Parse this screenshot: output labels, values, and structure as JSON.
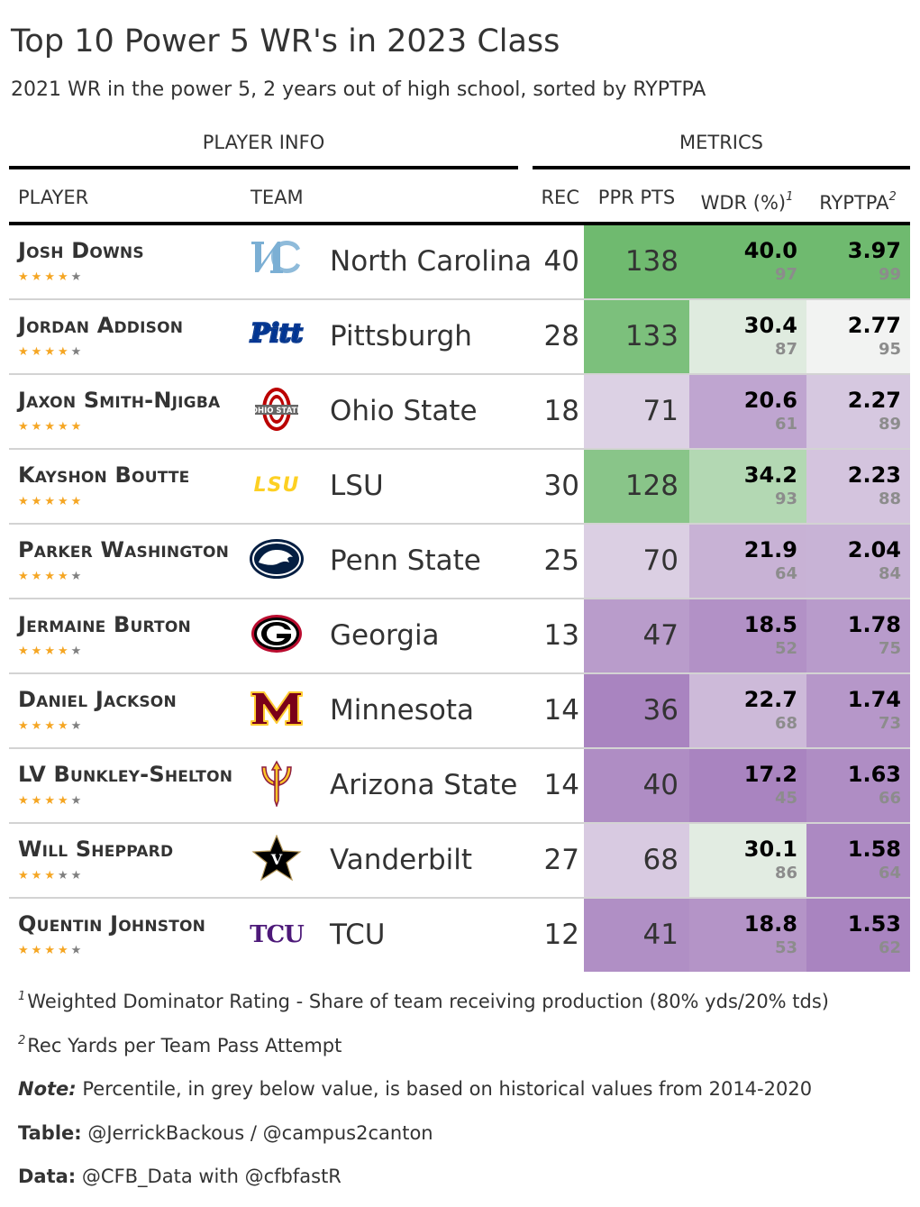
{
  "title": "Top 10 Power 5 WR's in 2023 Class",
  "subtitle": "2021 WR in the power 5, 2 years out of high school, sorted by RYPTPA",
  "spanners": {
    "player_info": "PLAYER INFO",
    "metrics": "METRICS"
  },
  "columns": {
    "player": "PLAYER",
    "team": "TEAM",
    "rec": "REC",
    "ppr": "PPR PTS",
    "wdr": "WDR (%)",
    "wdr_note": "1",
    "ryptpa": "RYPTPA",
    "ryptpa_note": "2"
  },
  "chart_data": {
    "type": "table",
    "title": "Top 10 Power 5 WR's in 2023 Class",
    "subtitle": "2021 WR in the power 5, 2 years out of high school, sorted by RYPTPA",
    "columns": [
      "PLAYER",
      "TEAM",
      "REC",
      "PPR PTS",
      "WDR (%)",
      "RYPTPA"
    ],
    "rows": [
      {
        "player": "Josh Downs",
        "stars": 4,
        "team": "North Carolina",
        "logo": "unc-logo",
        "rec": 40,
        "ppr": 138,
        "wdr": "40.0",
        "wdr_pct": 97,
        "ryptpa": "3.97",
        "ryptpa_pct": 99
      },
      {
        "player": "Jordan Addison",
        "stars": 4,
        "team": "Pittsburgh",
        "logo": "pitt-logo",
        "rec": 28,
        "ppr": 133,
        "wdr": "30.4",
        "wdr_pct": 87,
        "ryptpa": "2.77",
        "ryptpa_pct": 95
      },
      {
        "player": "Jaxon Smith-Njigba",
        "stars": 5,
        "team": "Ohio State",
        "logo": "ohio-state-logo",
        "rec": 18,
        "ppr": 71,
        "wdr": "20.6",
        "wdr_pct": 61,
        "ryptpa": "2.27",
        "ryptpa_pct": 89
      },
      {
        "player": "Kayshon Boutte",
        "stars": 5,
        "team": "LSU",
        "logo": "lsu-logo",
        "rec": 30,
        "ppr": 128,
        "wdr": "34.2",
        "wdr_pct": 93,
        "ryptpa": "2.23",
        "ryptpa_pct": 88
      },
      {
        "player": "Parker Washington",
        "stars": 4,
        "team": "Penn State",
        "logo": "penn-state-logo",
        "rec": 25,
        "ppr": 70,
        "wdr": "21.9",
        "wdr_pct": 64,
        "ryptpa": "2.04",
        "ryptpa_pct": 84
      },
      {
        "player": "Jermaine Burton",
        "stars": 4,
        "team": "Georgia",
        "logo": "georgia-logo",
        "rec": 13,
        "ppr": 47,
        "wdr": "18.5",
        "wdr_pct": 52,
        "ryptpa": "1.78",
        "ryptpa_pct": 75
      },
      {
        "player": "Daniel Jackson",
        "stars": 4,
        "team": "Minnesota",
        "logo": "minnesota-logo",
        "rec": 14,
        "ppr": 36,
        "wdr": "22.7",
        "wdr_pct": 68,
        "ryptpa": "1.74",
        "ryptpa_pct": 73
      },
      {
        "player": "LV Bunkley-Shelton",
        "stars": 4,
        "team": "Arizona State",
        "logo": "arizona-state-logo",
        "rec": 14,
        "ppr": 40,
        "wdr": "17.2",
        "wdr_pct": 45,
        "ryptpa": "1.63",
        "ryptpa_pct": 66
      },
      {
        "player": "Will Sheppard",
        "stars": 3,
        "team": "Vanderbilt",
        "logo": "vanderbilt-logo",
        "rec": 27,
        "ppr": 68,
        "wdr": "30.1",
        "wdr_pct": 86,
        "ryptpa": "1.58",
        "ryptpa_pct": 64
      },
      {
        "player": "Quentin Johnston",
        "stars": 4,
        "team": "TCU",
        "logo": "tcu-logo",
        "rec": 12,
        "ppr": 41,
        "wdr": "18.8",
        "wdr_pct": 53,
        "ryptpa": "1.53",
        "ryptpa_pct": 62
      }
    ],
    "color_scale": {
      "low": "#a984c0",
      "mid": "#f4f4f4",
      "high": "#6fba6f"
    },
    "star_colors": {
      "filled": "#f5a623",
      "empty": "#7f7f7f"
    }
  },
  "footnotes": {
    "f1_mark": "1",
    "f1": "Weighted Dominator Rating - Share of team receiving production (80% yds/20% tds)",
    "f2_mark": "2",
    "f2": "Rec Yards per Team Pass Attempt",
    "note_label": "Note:",
    "note": "Percentile, in grey below value, is based on historical values from 2014-2020",
    "table_label": "Table:",
    "table": "@JerrickBackous / @campus2canton",
    "data_label": "Data:",
    "data": "@CFB_Data with @cfbfastR"
  }
}
